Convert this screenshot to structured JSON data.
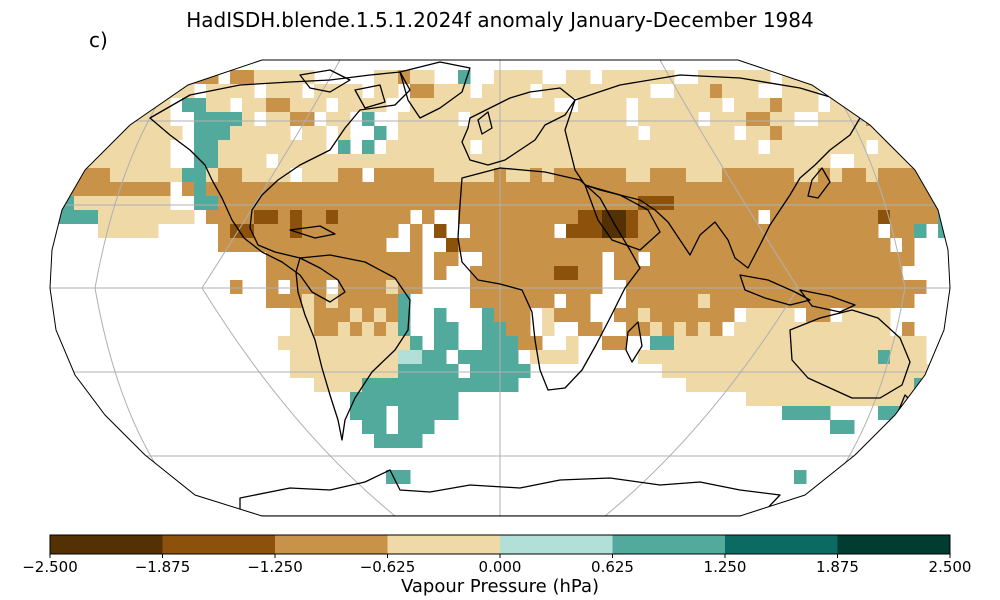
{
  "title": "HadISDH.blende.1.5.1.2024f anomaly January-December 1984",
  "panel_label": "c)",
  "projection": "Robinson",
  "colorbar": {
    "label": "Vapour Pressure (hPa)",
    "ticks": [
      "−2.500",
      "−1.875",
      "−1.250",
      "−0.625",
      "0.000",
      "0.625",
      "1.250",
      "1.875",
      "2.500"
    ],
    "tick_values": [
      -2.5,
      -1.875,
      -1.25,
      -0.625,
      0.0,
      0.625,
      1.25,
      1.875,
      2.5
    ],
    "colors": [
      "#543005",
      "#8c510a",
      "#c89349",
      "#eed9a7",
      "#b2e0d8",
      "#52aa9d",
      "#0b6b62",
      "#003c30"
    ]
  },
  "colors": {
    "land_outline": "#000000",
    "graticule": "#b0b0b0",
    "ocean": "#ffffff"
  }
}
